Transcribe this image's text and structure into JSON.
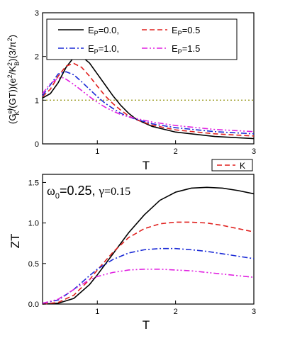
{
  "chart_data": [
    {
      "type": "line",
      "ylabel": "(G_K^el/(GT))(e^2/K_B^2)(3/π^2)",
      "xlabel": "T",
      "xlim": [
        0.3,
        3.0
      ],
      "ylim": [
        0,
        3.0
      ],
      "xticks": [
        "1",
        "2",
        "3"
      ],
      "yticks": [
        "0",
        "1",
        "2",
        "3"
      ],
      "reference_line": {
        "y": 1.0,
        "color": "#9a9a20"
      },
      "legend_placement": "top",
      "series": [
        {
          "name": "E_P=0.0,",
          "color": "#000000",
          "dash": "solid",
          "points": [
            [
              0.3,
              1.05
            ],
            [
              0.4,
              1.15
            ],
            [
              0.5,
              1.4
            ],
            [
              0.6,
              1.75
            ],
            [
              0.7,
              1.98
            ],
            [
              0.75,
              2.03
            ],
            [
              0.8,
              2.0
            ],
            [
              0.9,
              1.85
            ],
            [
              1.0,
              1.6
            ],
            [
              1.1,
              1.35
            ],
            [
              1.2,
              1.1
            ],
            [
              1.3,
              0.88
            ],
            [
              1.4,
              0.7
            ],
            [
              1.5,
              0.56
            ],
            [
              1.7,
              0.4
            ],
            [
              2.0,
              0.27
            ],
            [
              2.5,
              0.17
            ],
            [
              3.0,
              0.12
            ]
          ]
        },
        {
          "name": "E_P=0.5",
          "color": "#e0201e",
          "dash": "7,4",
          "points": [
            [
              0.3,
              1.08
            ],
            [
              0.4,
              1.25
            ],
            [
              0.5,
              1.55
            ],
            [
              0.6,
              1.78
            ],
            [
              0.7,
              1.84
            ],
            [
              0.8,
              1.75
            ],
            [
              0.9,
              1.55
            ],
            [
              1.0,
              1.32
            ],
            [
              1.1,
              1.1
            ],
            [
              1.2,
              0.92
            ],
            [
              1.3,
              0.77
            ],
            [
              1.4,
              0.64
            ],
            [
              1.5,
              0.55
            ],
            [
              1.7,
              0.43
            ],
            [
              2.0,
              0.32
            ],
            [
              2.5,
              0.23
            ],
            [
              3.0,
              0.18
            ]
          ]
        },
        {
          "name": "E_P=1.0,",
          "color": "#1a2ad6",
          "dash": "8,3,2,3",
          "points": [
            [
              0.3,
              1.1
            ],
            [
              0.4,
              1.35
            ],
            [
              0.5,
              1.6
            ],
            [
              0.6,
              1.65
            ],
            [
              0.7,
              1.58
            ],
            [
              0.8,
              1.42
            ],
            [
              0.9,
              1.25
            ],
            [
              1.0,
              1.08
            ],
            [
              1.1,
              0.93
            ],
            [
              1.2,
              0.81
            ],
            [
              1.3,
              0.7
            ],
            [
              1.4,
              0.62
            ],
            [
              1.5,
              0.56
            ],
            [
              1.7,
              0.46
            ],
            [
              2.0,
              0.37
            ],
            [
              2.5,
              0.28
            ],
            [
              3.0,
              0.23
            ]
          ]
        },
        {
          "name": "E_P=1.5",
          "color": "#e020e0",
          "dash": "8,3,2,3,2,3",
          "points": [
            [
              0.3,
              1.15
            ],
            [
              0.4,
              1.38
            ],
            [
              0.5,
              1.5
            ],
            [
              0.55,
              1.52
            ],
            [
              0.6,
              1.48
            ],
            [
              0.7,
              1.36
            ],
            [
              0.8,
              1.22
            ],
            [
              0.9,
              1.08
            ],
            [
              1.0,
              0.95
            ],
            [
              1.1,
              0.84
            ],
            [
              1.2,
              0.75
            ],
            [
              1.3,
              0.67
            ],
            [
              1.4,
              0.62
            ],
            [
              1.5,
              0.58
            ],
            [
              1.7,
              0.5
            ],
            [
              2.0,
              0.42
            ],
            [
              2.5,
              0.33
            ],
            [
              3.0,
              0.28
            ]
          ]
        }
      ]
    },
    {
      "type": "line",
      "title": "ω_0=0.25, γ=0.15",
      "ylabel": "ZT",
      "xlabel": "T",
      "xlim": [
        0.3,
        3.0
      ],
      "ylim": [
        0,
        1.6
      ],
      "xticks": [
        "1",
        "2",
        "3"
      ],
      "yticks": [
        "0.0",
        "0.5",
        "1.0",
        "1.5"
      ],
      "legend_entries": [
        {
          "name": "K",
          "color": "#e0201e"
        }
      ],
      "legend_placement": "top-right",
      "series": [
        {
          "name": "E_P=0.0,",
          "color": "#000000",
          "dash": "solid",
          "points": [
            [
              0.3,
              0.0
            ],
            [
              0.5,
              0.01
            ],
            [
              0.7,
              0.07
            ],
            [
              0.9,
              0.24
            ],
            [
              1.0,
              0.36
            ],
            [
              1.2,
              0.62
            ],
            [
              1.4,
              0.88
            ],
            [
              1.6,
              1.1
            ],
            [
              1.8,
              1.28
            ],
            [
              2.0,
              1.38
            ],
            [
              2.2,
              1.43
            ],
            [
              2.4,
              1.44
            ],
            [
              2.6,
              1.43
            ],
            [
              2.8,
              1.4
            ],
            [
              3.0,
              1.36
            ]
          ]
        },
        {
          "name": "E_P=0.5",
          "color": "#e0201e",
          "dash": "7,4",
          "points": [
            [
              0.3,
              0.0
            ],
            [
              0.5,
              0.02
            ],
            [
              0.7,
              0.11
            ],
            [
              0.9,
              0.3
            ],
            [
              1.0,
              0.42
            ],
            [
              1.2,
              0.64
            ],
            [
              1.4,
              0.82
            ],
            [
              1.6,
              0.93
            ],
            [
              1.8,
              0.99
            ],
            [
              2.0,
              1.01
            ],
            [
              2.2,
              1.01
            ],
            [
              2.4,
              1.0
            ],
            [
              2.6,
              0.97
            ],
            [
              2.8,
              0.93
            ],
            [
              3.0,
              0.89
            ]
          ]
        },
        {
          "name": "E_P=1.0,",
          "color": "#1a2ad6",
          "dash": "8,3,2,3",
          "points": [
            [
              0.3,
              0.01
            ],
            [
              0.5,
              0.05
            ],
            [
              0.7,
              0.18
            ],
            [
              0.9,
              0.35
            ],
            [
              1.0,
              0.43
            ],
            [
              1.2,
              0.55
            ],
            [
              1.4,
              0.63
            ],
            [
              1.6,
              0.67
            ],
            [
              1.8,
              0.685
            ],
            [
              2.0,
              0.685
            ],
            [
              2.2,
              0.67
            ],
            [
              2.4,
              0.65
            ],
            [
              2.6,
              0.62
            ],
            [
              2.8,
              0.59
            ],
            [
              3.0,
              0.56
            ]
          ]
        },
        {
          "name": "E_P=1.5",
          "color": "#e020e0",
          "dash": "8,3,2,3,2,3",
          "points": [
            [
              0.3,
              0.01
            ],
            [
              0.5,
              0.06
            ],
            [
              0.7,
              0.18
            ],
            [
              0.9,
              0.3
            ],
            [
              1.0,
              0.34
            ],
            [
              1.2,
              0.39
            ],
            [
              1.4,
              0.42
            ],
            [
              1.6,
              0.43
            ],
            [
              1.8,
              0.43
            ],
            [
              2.0,
              0.42
            ],
            [
              2.2,
              0.41
            ],
            [
              2.4,
              0.39
            ],
            [
              2.6,
              0.37
            ],
            [
              2.8,
              0.35
            ],
            [
              3.0,
              0.33
            ]
          ]
        }
      ]
    }
  ]
}
